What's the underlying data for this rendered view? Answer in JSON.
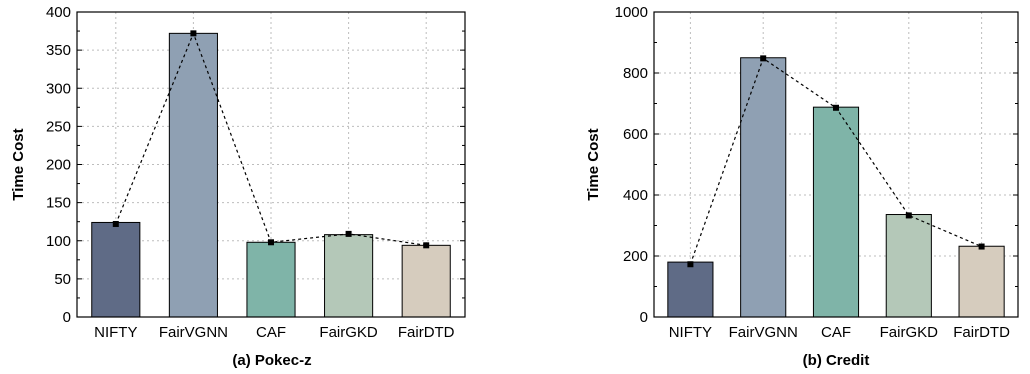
{
  "chart_data": [
    {
      "type": "bar",
      "caption": "(a) Pokec-z",
      "ylabel": "Time Cost",
      "xlabel": "",
      "categories": [
        "NIFTY",
        "FairVGNN",
        "CAF",
        "FairGKD",
        "FairDTD"
      ],
      "values": [
        124,
        372,
        98,
        108,
        94
      ],
      "line_values": [
        122,
        372,
        98,
        109,
        94
      ],
      "ylim": [
        0,
        400
      ],
      "yticks": [
        0,
        50,
        100,
        150,
        200,
        250,
        300,
        350,
        400
      ],
      "grid": true,
      "bar_colors": [
        "#5f6b86",
        "#8fa0b3",
        "#7fb4a8",
        "#b4c8b8",
        "#d6ccbe"
      ]
    },
    {
      "type": "bar",
      "caption": "(b) Credit",
      "ylabel": "Time Cost",
      "xlabel": "",
      "categories": [
        "NIFTY",
        "FairVGNN",
        "CAF",
        "FairGKD",
        "FairDTD"
      ],
      "values": [
        180,
        850,
        688,
        336,
        232
      ],
      "line_values": [
        173,
        848,
        686,
        333,
        231
      ],
      "ylim": [
        0,
        1000
      ],
      "yticks": [
        0,
        200,
        400,
        600,
        800,
        1000
      ],
      "grid": true,
      "bar_colors": [
        "#5f6b86",
        "#8fa0b3",
        "#7fb4a8",
        "#b4c8b8",
        "#d6ccbe"
      ]
    }
  ]
}
